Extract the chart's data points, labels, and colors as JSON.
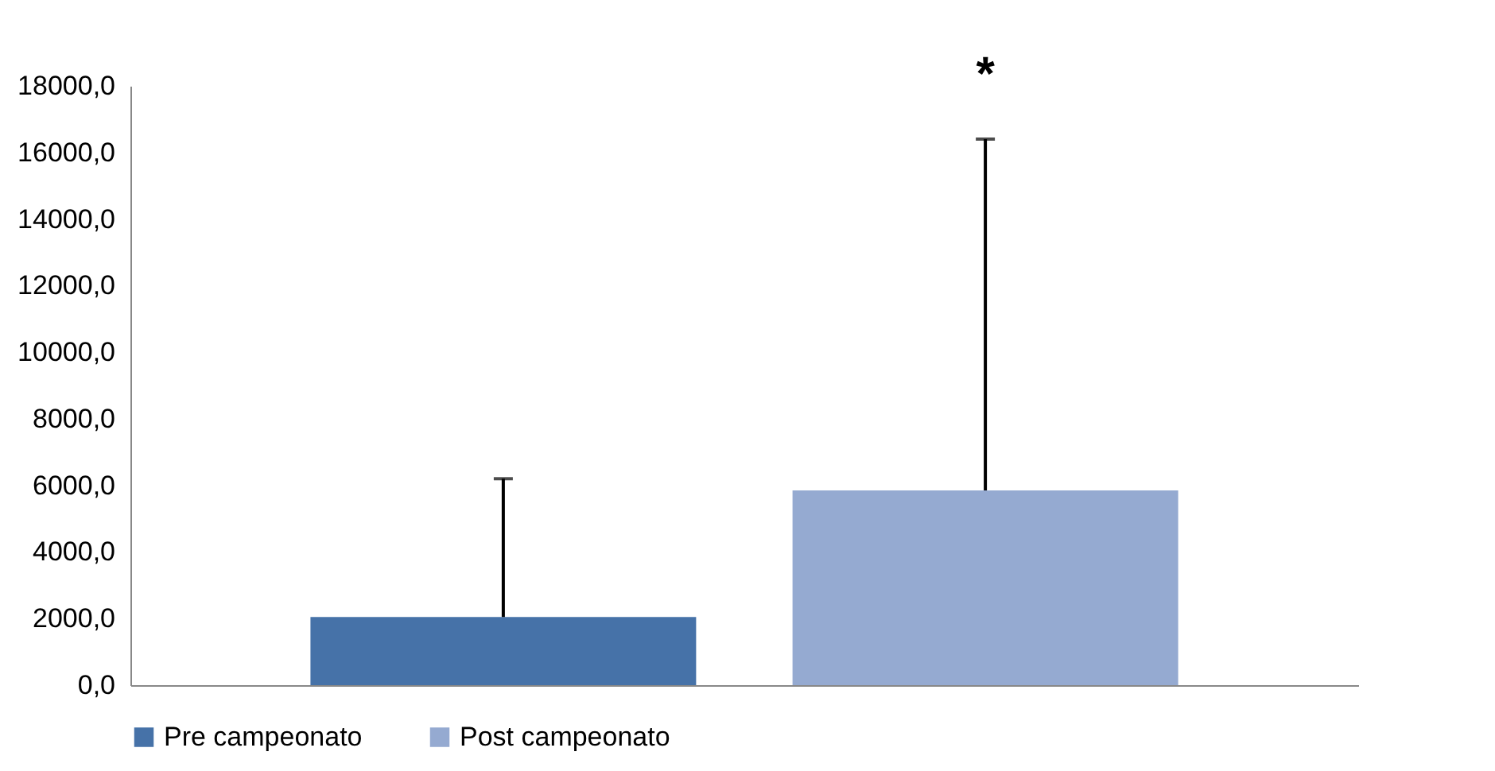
{
  "chart_data": {
    "type": "bar",
    "categories": [
      null
    ],
    "series": [
      {
        "name": "Pre campeonato",
        "color": "#4672a8",
        "values": [
          2050
        ],
        "errors": [
          [
            2050,
            6200
          ]
        ]
      },
      {
        "name": "Post campeonato",
        "color": "#95aad1",
        "values": [
          5850
        ],
        "errors": [
          [
            5850,
            16400
          ]
        ]
      }
    ],
    "ylim": [
      0,
      18000
    ],
    "yticks": [
      {
        "value": 0,
        "label": "0,0"
      },
      {
        "value": 2000,
        "label": "2000,0"
      },
      {
        "value": 4000,
        "label": "4000,0"
      },
      {
        "value": 6000,
        "label": "6000,0"
      },
      {
        "value": 8000,
        "label": "8000,0"
      },
      {
        "value": 10000,
        "label": "10000,0"
      },
      {
        "value": 12000,
        "label": "12000,0"
      },
      {
        "value": 14000,
        "label": "14000,0"
      },
      {
        "value": 16000,
        "label": "16000,0"
      },
      {
        "value": 18000,
        "label": "18000,0"
      }
    ],
    "annotations": [
      "*"
    ],
    "grid": false,
    "legend": "bottom"
  }
}
